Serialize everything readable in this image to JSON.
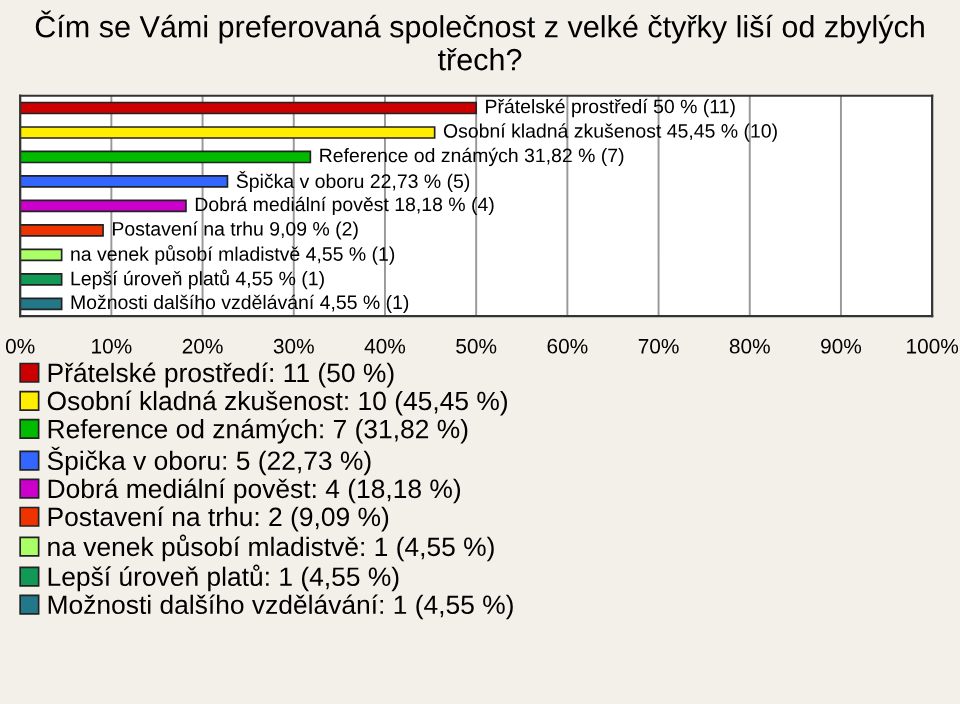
{
  "chart_data": {
    "type": "bar",
    "orientation": "horizontal",
    "title": "Čím se Vámi preferovaná společnost z velké čtyřky liší od zbylých třech?",
    "categories": [
      null,
      null,
      null,
      null,
      null,
      null,
      null,
      null,
      null
    ],
    "series": [
      {
        "name": "Přátelské prostředí: 11 (50 %)",
        "color": "#cc0000",
        "values": [
          50,
          null,
          null,
          null,
          null,
          null,
          null,
          null,
          null
        ],
        "value_labels": [
          "Přátelské prostředí 50 % (11)",
          null,
          null,
          null,
          null,
          null,
          null,
          null,
          null
        ]
      },
      {
        "name": "Osobní kladná zkušenost: 10 (45,45 %)",
        "color": "#ffee00",
        "values": [
          null,
          45.45,
          null,
          null,
          null,
          null,
          null,
          null,
          null
        ],
        "value_labels": [
          null,
          "Osobní kladná zkušenost 45,45 % (10)",
          null,
          null,
          null,
          null,
          null,
          null,
          null
        ]
      },
      {
        "name": "Reference od známých: 7 (31,82 %)",
        "color": "#00bb00",
        "values": [
          null,
          null,
          31.82,
          null,
          null,
          null,
          null,
          null,
          null
        ],
        "value_labels": [
          null,
          null,
          "Reference od známých 31,82 % (7)",
          null,
          null,
          null,
          null,
          null,
          null
        ]
      },
      {
        "name": "Špička v oboru: 5 (22,73 %)",
        "color": "#3366ff",
        "values": [
          null,
          null,
          null,
          22.73,
          null,
          null,
          null,
          null,
          null
        ],
        "value_labels": [
          null,
          null,
          null,
          "Špička v oboru 22,73 % (5)",
          null,
          null,
          null,
          null,
          null
        ]
      },
      {
        "name": "Dobrá mediální pověst: 4 (18,18 %)",
        "color": "#cc00cc",
        "values": [
          null,
          null,
          null,
          null,
          18.18,
          null,
          null,
          null,
          null
        ],
        "value_labels": [
          null,
          null,
          null,
          null,
          "Dobrá mediální pověst 18,18 % (4)",
          null,
          null,
          null,
          null
        ]
      },
      {
        "name": "Postavení na trhu: 2 (9,09 %)",
        "color": "#ee3300",
        "values": [
          null,
          null,
          null,
          null,
          null,
          9.09,
          null,
          null,
          null
        ],
        "value_labels": [
          null,
          null,
          null,
          null,
          null,
          "Postavení na trhu 9,09 % (2)",
          null,
          null,
          null
        ]
      },
      {
        "name": "na venek působí mladistvě: 1 (4,55 %)",
        "color": "#aaff66",
        "values": [
          null,
          null,
          null,
          null,
          null,
          null,
          4.55,
          null,
          null
        ],
        "value_labels": [
          null,
          null,
          null,
          null,
          null,
          null,
          "na venek působí mladistvě 4,55 % (1)",
          null,
          null
        ]
      },
      {
        "name": "Lepší úroveň platů: 1 (4,55 %)",
        "color": "#119955",
        "values": [
          null,
          null,
          null,
          null,
          null,
          null,
          null,
          4.55,
          null
        ],
        "value_labels": [
          null,
          null,
          null,
          null,
          null,
          null,
          null,
          "Lepší úroveň platů 4,55 % (1)",
          null
        ]
      },
      {
        "name": "Možnosti dalšího vzdělávání: 1 (4,55 %)",
        "color": "#227788",
        "values": [
          null,
          null,
          null,
          null,
          null,
          null,
          null,
          null,
          4.55
        ],
        "value_labels": [
          null,
          null,
          null,
          null,
          null,
          null,
          null,
          null,
          "Možnosti dalšího vzdělávání 4,55 % (1)"
        ]
      }
    ],
    "xlim": [
      0,
      100
    ],
    "xticks": [
      {
        "value": 0,
        "label": "0%"
      },
      {
        "value": 10,
        "label": "10%"
      },
      {
        "value": 20,
        "label": "20%"
      },
      {
        "value": 30,
        "label": "30%"
      },
      {
        "value": 40,
        "label": "40%"
      },
      {
        "value": 50,
        "label": "50%"
      },
      {
        "value": 60,
        "label": "60%"
      },
      {
        "value": 70,
        "label": "70%"
      },
      {
        "value": 80,
        "label": "80%"
      },
      {
        "value": 90,
        "label": "90%"
      },
      {
        "value": 100,
        "label": "100%"
      }
    ],
    "grid": "x",
    "legend": "bottom"
  }
}
